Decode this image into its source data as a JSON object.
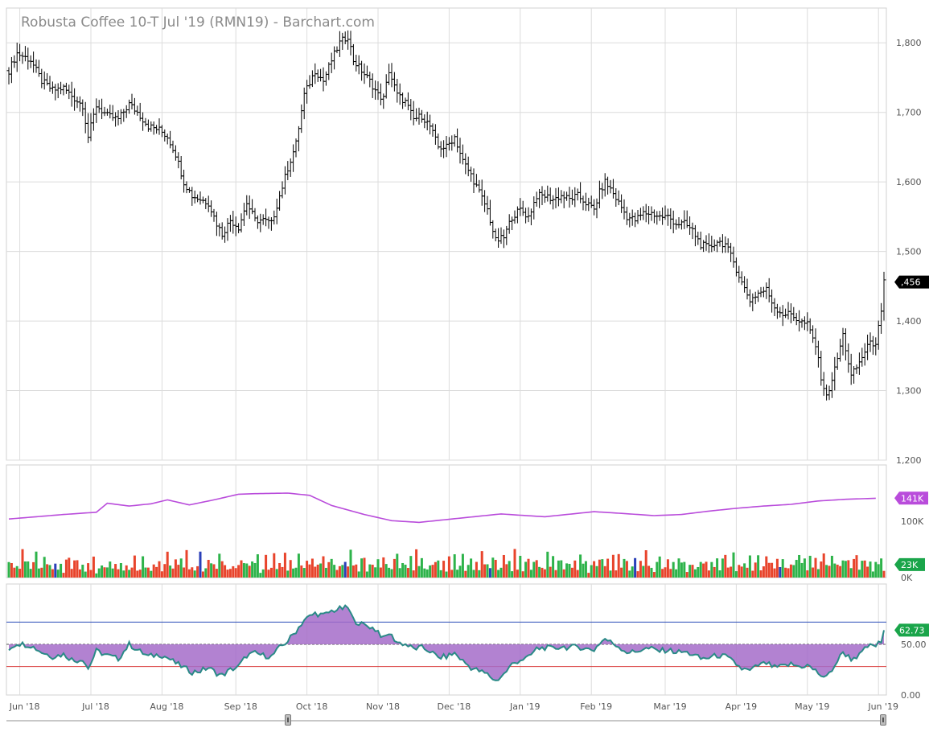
{
  "title": "Robusta Coffee 10-T Jul '19 (RMN19) - Barchart.com",
  "colors": {
    "grid": "#dcdcdc",
    "bar": "#000000",
    "volume_up": "#2db34a",
    "volume_down": "#e8442c",
    "volume_neutral": "#2a3fb8",
    "avg_volume_line": "#b94cdb",
    "rsi_line": "#2a8a87",
    "rsi_fill": "#a46cc9",
    "rsi_upper": "#2a4bb8",
    "rsi_lower": "#d93b3b",
    "last_price_bg": "#000000",
    "avg_badge_bg": "#b94cdb",
    "vol_badge_bg": "#1aa54a",
    "rsi_badge_bg": "#1aa54a"
  },
  "chart_data": [
    {
      "type": "ohlc",
      "name": "price",
      "x_labels": [
        "Jun '18",
        "Jul '18",
        "Aug '18",
        "Sep '18",
        "Oct '18",
        "Nov '18",
        "Dec '18",
        "Jan '19",
        "Feb '19",
        "Mar '19",
        "Apr '19",
        "May '19",
        "Jun '19"
      ],
      "ylim": [
        1200,
        1850
      ],
      "y_ticks": [
        "1,200",
        "1,300",
        "1,400",
        "1,500",
        "1,600",
        "1,700",
        "1,800"
      ],
      "last_price": ",456",
      "close_series": [
        [
          0,
          1760
        ],
        [
          3,
          1785
        ],
        [
          8,
          1775
        ],
        [
          12,
          1745
        ],
        [
          16,
          1732
        ],
        [
          20,
          1735
        ],
        [
          24,
          1720
        ],
        [
          27,
          1710
        ],
        [
          29,
          1665
        ],
        [
          32,
          1710
        ],
        [
          36,
          1695
        ],
        [
          40,
          1690
        ],
        [
          44,
          1712
        ],
        [
          47,
          1700
        ],
        [
          51,
          1680
        ],
        [
          55,
          1675
        ],
        [
          58,
          1665
        ],
        [
          61,
          1640
        ],
        [
          64,
          1600
        ],
        [
          67,
          1580
        ],
        [
          70,
          1575
        ],
        [
          73,
          1570
        ],
        [
          76,
          1540
        ],
        [
          78,
          1525
        ],
        [
          81,
          1545
        ],
        [
          84,
          1535
        ],
        [
          87,
          1570
        ],
        [
          90,
          1545
        ],
        [
          93,
          1545
        ],
        [
          96,
          1540
        ],
        [
          99,
          1580
        ],
        [
          102,
          1620
        ],
        [
          105,
          1655
        ],
        [
          108,
          1725
        ],
        [
          112,
          1760
        ],
        [
          115,
          1745
        ],
        [
          118,
          1775
        ],
        [
          121,
          1800
        ],
        [
          124,
          1810
        ],
        [
          126,
          1775
        ],
        [
          129,
          1760
        ],
        [
          132,
          1745
        ],
        [
          135,
          1725
        ],
        [
          137,
          1720
        ],
        [
          139,
          1760
        ],
        [
          142,
          1725
        ],
        [
          145,
          1715
        ],
        [
          148,
          1690
        ],
        [
          151,
          1695
        ],
        [
          154,
          1680
        ],
        [
          157,
          1650
        ],
        [
          160,
          1650
        ],
        [
          163,
          1665
        ],
        [
          166,
          1630
        ],
        [
          169,
          1610
        ],
        [
          172,
          1585
        ],
        [
          175,
          1560
        ],
        [
          178,
          1515
        ],
        [
          181,
          1520
        ],
        [
          184,
          1550
        ],
        [
          187,
          1560
        ],
        [
          190,
          1550
        ],
        [
          193,
          1580
        ],
        [
          196,
          1580
        ],
        [
          199,
          1575
        ],
        [
          202,
          1580
        ],
        [
          205,
          1575
        ],
        [
          208,
          1580
        ],
        [
          211,
          1570
        ],
        [
          214,
          1560
        ],
        [
          216,
          1585
        ],
        [
          218,
          1600
        ],
        [
          220,
          1590
        ],
        [
          223,
          1570
        ],
        [
          226,
          1550
        ],
        [
          229,
          1545
        ],
        [
          232,
          1555
        ],
        [
          235,
          1555
        ],
        [
          238,
          1550
        ],
        [
          241,
          1550
        ],
        [
          244,
          1540
        ],
        [
          247,
          1540
        ],
        [
          250,
          1530
        ],
        [
          253,
          1510
        ],
        [
          256,
          1505
        ],
        [
          259,
          1515
        ],
        [
          262,
          1510
        ],
        [
          265,
          1485
        ],
        [
          268,
          1455
        ],
        [
          271,
          1430
        ],
        [
          274,
          1440
        ],
        [
          277,
          1445
        ],
        [
          280,
          1420
        ],
        [
          283,
          1410
        ],
        [
          286,
          1410
        ],
        [
          289,
          1400
        ],
        [
          292,
          1395
        ],
        [
          295,
          1365
        ],
        [
          297,
          1320
        ],
        [
          299,
          1290
        ],
        [
          302,
          1330
        ],
        [
          305,
          1380
        ],
        [
          308,
          1320
        ],
        [
          311,
          1340
        ],
        [
          314,
          1365
        ],
        [
          317,
          1370
        ],
        [
          319,
          1410
        ],
        [
          320,
          1456
        ]
      ]
    },
    {
      "type": "bar+line",
      "name": "volume",
      "avg_label": "141K",
      "volume_label": "23K",
      "y_ticks": [
        "100K",
        "0K"
      ],
      "ylim": [
        0,
        200000
      ],
      "avg_series": [
        [
          0,
          104000
        ],
        [
          20,
          112000
        ],
        [
          32,
          116000
        ],
        [
          36,
          132000
        ],
        [
          44,
          127000
        ],
        [
          52,
          131000
        ],
        [
          58,
          138000
        ],
        [
          66,
          129000
        ],
        [
          75,
          138000
        ],
        [
          84,
          148000
        ],
        [
          90,
          149000
        ],
        [
          102,
          150000
        ],
        [
          110,
          146000
        ],
        [
          118,
          128000
        ],
        [
          130,
          112000
        ],
        [
          140,
          101000
        ],
        [
          150,
          98000
        ],
        [
          160,
          103000
        ],
        [
          170,
          108000
        ],
        [
          180,
          113000
        ],
        [
          186,
          111000
        ],
        [
          196,
          108000
        ],
        [
          206,
          113000
        ],
        [
          214,
          117000
        ],
        [
          224,
          114000
        ],
        [
          236,
          110000
        ],
        [
          246,
          112000
        ],
        [
          256,
          118000
        ],
        [
          266,
          123000
        ],
        [
          276,
          127000
        ],
        [
          286,
          130000
        ],
        [
          296,
          136000
        ],
        [
          306,
          139000
        ],
        [
          312,
          140000
        ],
        [
          318,
          141000
        ]
      ],
      "volume_pattern": [
        22000,
        30000,
        18000,
        26000,
        14000,
        34000,
        20000,
        28000,
        12000,
        24000,
        32000,
        16000
      ]
    },
    {
      "type": "line",
      "name": "rsi",
      "last_label": "62.73",
      "upper": 70,
      "lower": 30,
      "mid": 50,
      "y_ticks": [
        "50.00",
        "0.00"
      ],
      "ylim": [
        0,
        100
      ],
      "rsi_series": [
        [
          0,
          46
        ],
        [
          3,
          51
        ],
        [
          8,
          49
        ],
        [
          12,
          43
        ],
        [
          16,
          39
        ],
        [
          20,
          41
        ],
        [
          24,
          35
        ],
        [
          27,
          37
        ],
        [
          29,
          28
        ],
        [
          32,
          44
        ],
        [
          36,
          40
        ],
        [
          40,
          37
        ],
        [
          44,
          50
        ],
        [
          47,
          45
        ],
        [
          51,
          39
        ],
        [
          55,
          41
        ],
        [
          58,
          38
        ],
        [
          61,
          33
        ],
        [
          64,
          29
        ],
        [
          67,
          25
        ],
        [
          70,
          26
        ],
        [
          73,
          29
        ],
        [
          76,
          24
        ],
        [
          78,
          22
        ],
        [
          81,
          27
        ],
        [
          84,
          30
        ],
        [
          87,
          40
        ],
        [
          90,
          42
        ],
        [
          93,
          40
        ],
        [
          96,
          39
        ],
        [
          99,
          47
        ],
        [
          102,
          53
        ],
        [
          105,
          62
        ],
        [
          108,
          72
        ],
        [
          112,
          78
        ],
        [
          115,
          76
        ],
        [
          118,
          80
        ],
        [
          121,
          82
        ],
        [
          124,
          83
        ],
        [
          126,
          72
        ],
        [
          129,
          68
        ],
        [
          132,
          66
        ],
        [
          135,
          62
        ],
        [
          137,
          55
        ],
        [
          139,
          60
        ],
        [
          142,
          52
        ],
        [
          145,
          50
        ],
        [
          148,
          46
        ],
        [
          151,
          47
        ],
        [
          154,
          44
        ],
        [
          157,
          38
        ],
        [
          160,
          39
        ],
        [
          163,
          42
        ],
        [
          166,
          35
        ],
        [
          169,
          29
        ],
        [
          172,
          26
        ],
        [
          175,
          23
        ],
        [
          178,
          17
        ],
        [
          181,
          23
        ],
        [
          184,
          32
        ],
        [
          187,
          36
        ],
        [
          190,
          38
        ],
        [
          193,
          46
        ],
        [
          196,
          47
        ],
        [
          199,
          46
        ],
        [
          202,
          48
        ],
        [
          205,
          47
        ],
        [
          208,
          48
        ],
        [
          211,
          46
        ],
        [
          214,
          45
        ],
        [
          216,
          51
        ],
        [
          218,
          55
        ],
        [
          220,
          52
        ],
        [
          223,
          48
        ],
        [
          226,
          43
        ],
        [
          229,
          43
        ],
        [
          232,
          46
        ],
        [
          235,
          46
        ],
        [
          238,
          44
        ],
        [
          241,
          45
        ],
        [
          244,
          43
        ],
        [
          247,
          43
        ],
        [
          250,
          41
        ],
        [
          253,
          37
        ],
        [
          256,
          38
        ],
        [
          259,
          40
        ],
        [
          262,
          39
        ],
        [
          265,
          34
        ],
        [
          268,
          28
        ],
        [
          271,
          26
        ],
        [
          274,
          31
        ],
        [
          277,
          33
        ],
        [
          280,
          29
        ],
        [
          283,
          30
        ],
        [
          286,
          32
        ],
        [
          289,
          30
        ],
        [
          292,
          31
        ],
        [
          295,
          26
        ],
        [
          297,
          22
        ],
        [
          299,
          20
        ],
        [
          302,
          31
        ],
        [
          305,
          43
        ],
        [
          308,
          37
        ],
        [
          311,
          40
        ],
        [
          314,
          48
        ],
        [
          317,
          49
        ],
        [
          319,
          52
        ],
        [
          320,
          62.73
        ]
      ]
    }
  ]
}
